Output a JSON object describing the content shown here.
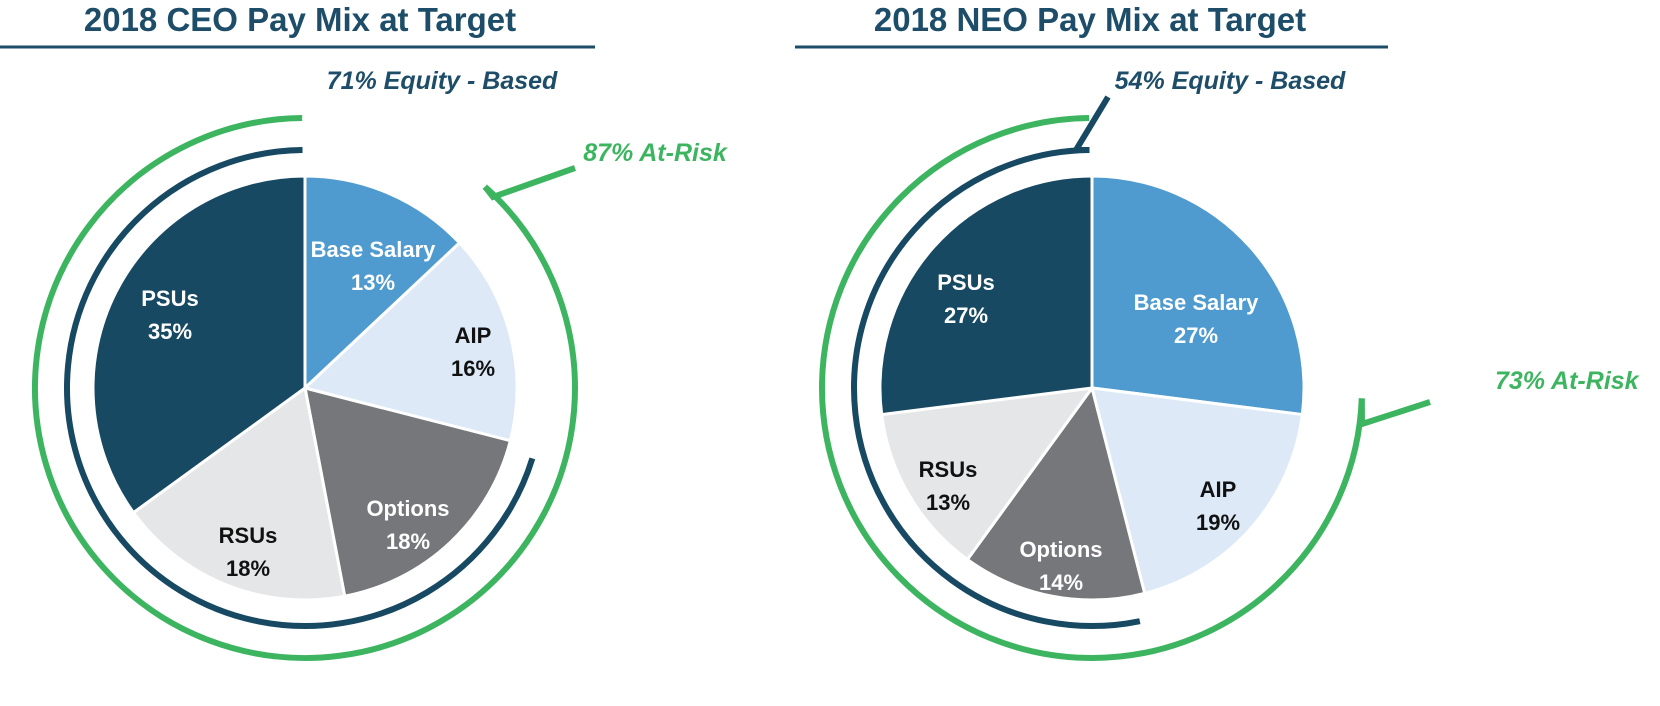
{
  "colors": {
    "navy": "#174963",
    "mid_blue": "#4f9bcf",
    "light_blue": "#dde9f7",
    "gray": "#76777a",
    "light_gray": "#e5e6e8",
    "green": "#3db560",
    "title_navy": "#1d4d68"
  },
  "chart_data": [
    {
      "type": "pie",
      "title": "2018 CEO Pay Mix at Target",
      "slices": [
        {
          "label": "Base Salary",
          "value": 13,
          "value_label": "13%",
          "color": "#4f9bcf",
          "text_color": "#ffffff"
        },
        {
          "label": "AIP",
          "value": 16,
          "value_label": "16%",
          "color": "#dde9f7",
          "text_color": "#111111"
        },
        {
          "label": "Options",
          "value": 18,
          "value_label": "18%",
          "color": "#76777a",
          "text_color": "#ffffff"
        },
        {
          "label": "RSUs",
          "value": 18,
          "value_label": "18%",
          "color": "#e5e6e8",
          "text_color": "#111111"
        },
        {
          "label": "PSUs",
          "value": 35,
          "value_label": "35%",
          "color": "#174963",
          "text_color": "#ffffff"
        }
      ],
      "equity_callout": "71% Equity - Based",
      "at_risk_callout": "87% At-Risk"
    },
    {
      "type": "pie",
      "title": "2018 NEO Pay Mix at Target",
      "slices": [
        {
          "label": "Base Salary",
          "value": 27,
          "value_label": "27%",
          "color": "#4f9bcf",
          "text_color": "#ffffff"
        },
        {
          "label": "AIP",
          "value": 19,
          "value_label": "19%",
          "color": "#dde9f7",
          "text_color": "#111111"
        },
        {
          "label": "Options",
          "value": 14,
          "value_label": "14%",
          "color": "#76777a",
          "text_color": "#ffffff"
        },
        {
          "label": "RSUs",
          "value": 13,
          "value_label": "13%",
          "color": "#e5e6e8",
          "text_color": "#111111"
        },
        {
          "label": "PSUs",
          "value": 27,
          "value_label": "27%",
          "color": "#174963",
          "text_color": "#ffffff"
        }
      ],
      "equity_callout": "54% Equity - Based",
      "at_risk_callout": "73% At-Risk"
    }
  ]
}
